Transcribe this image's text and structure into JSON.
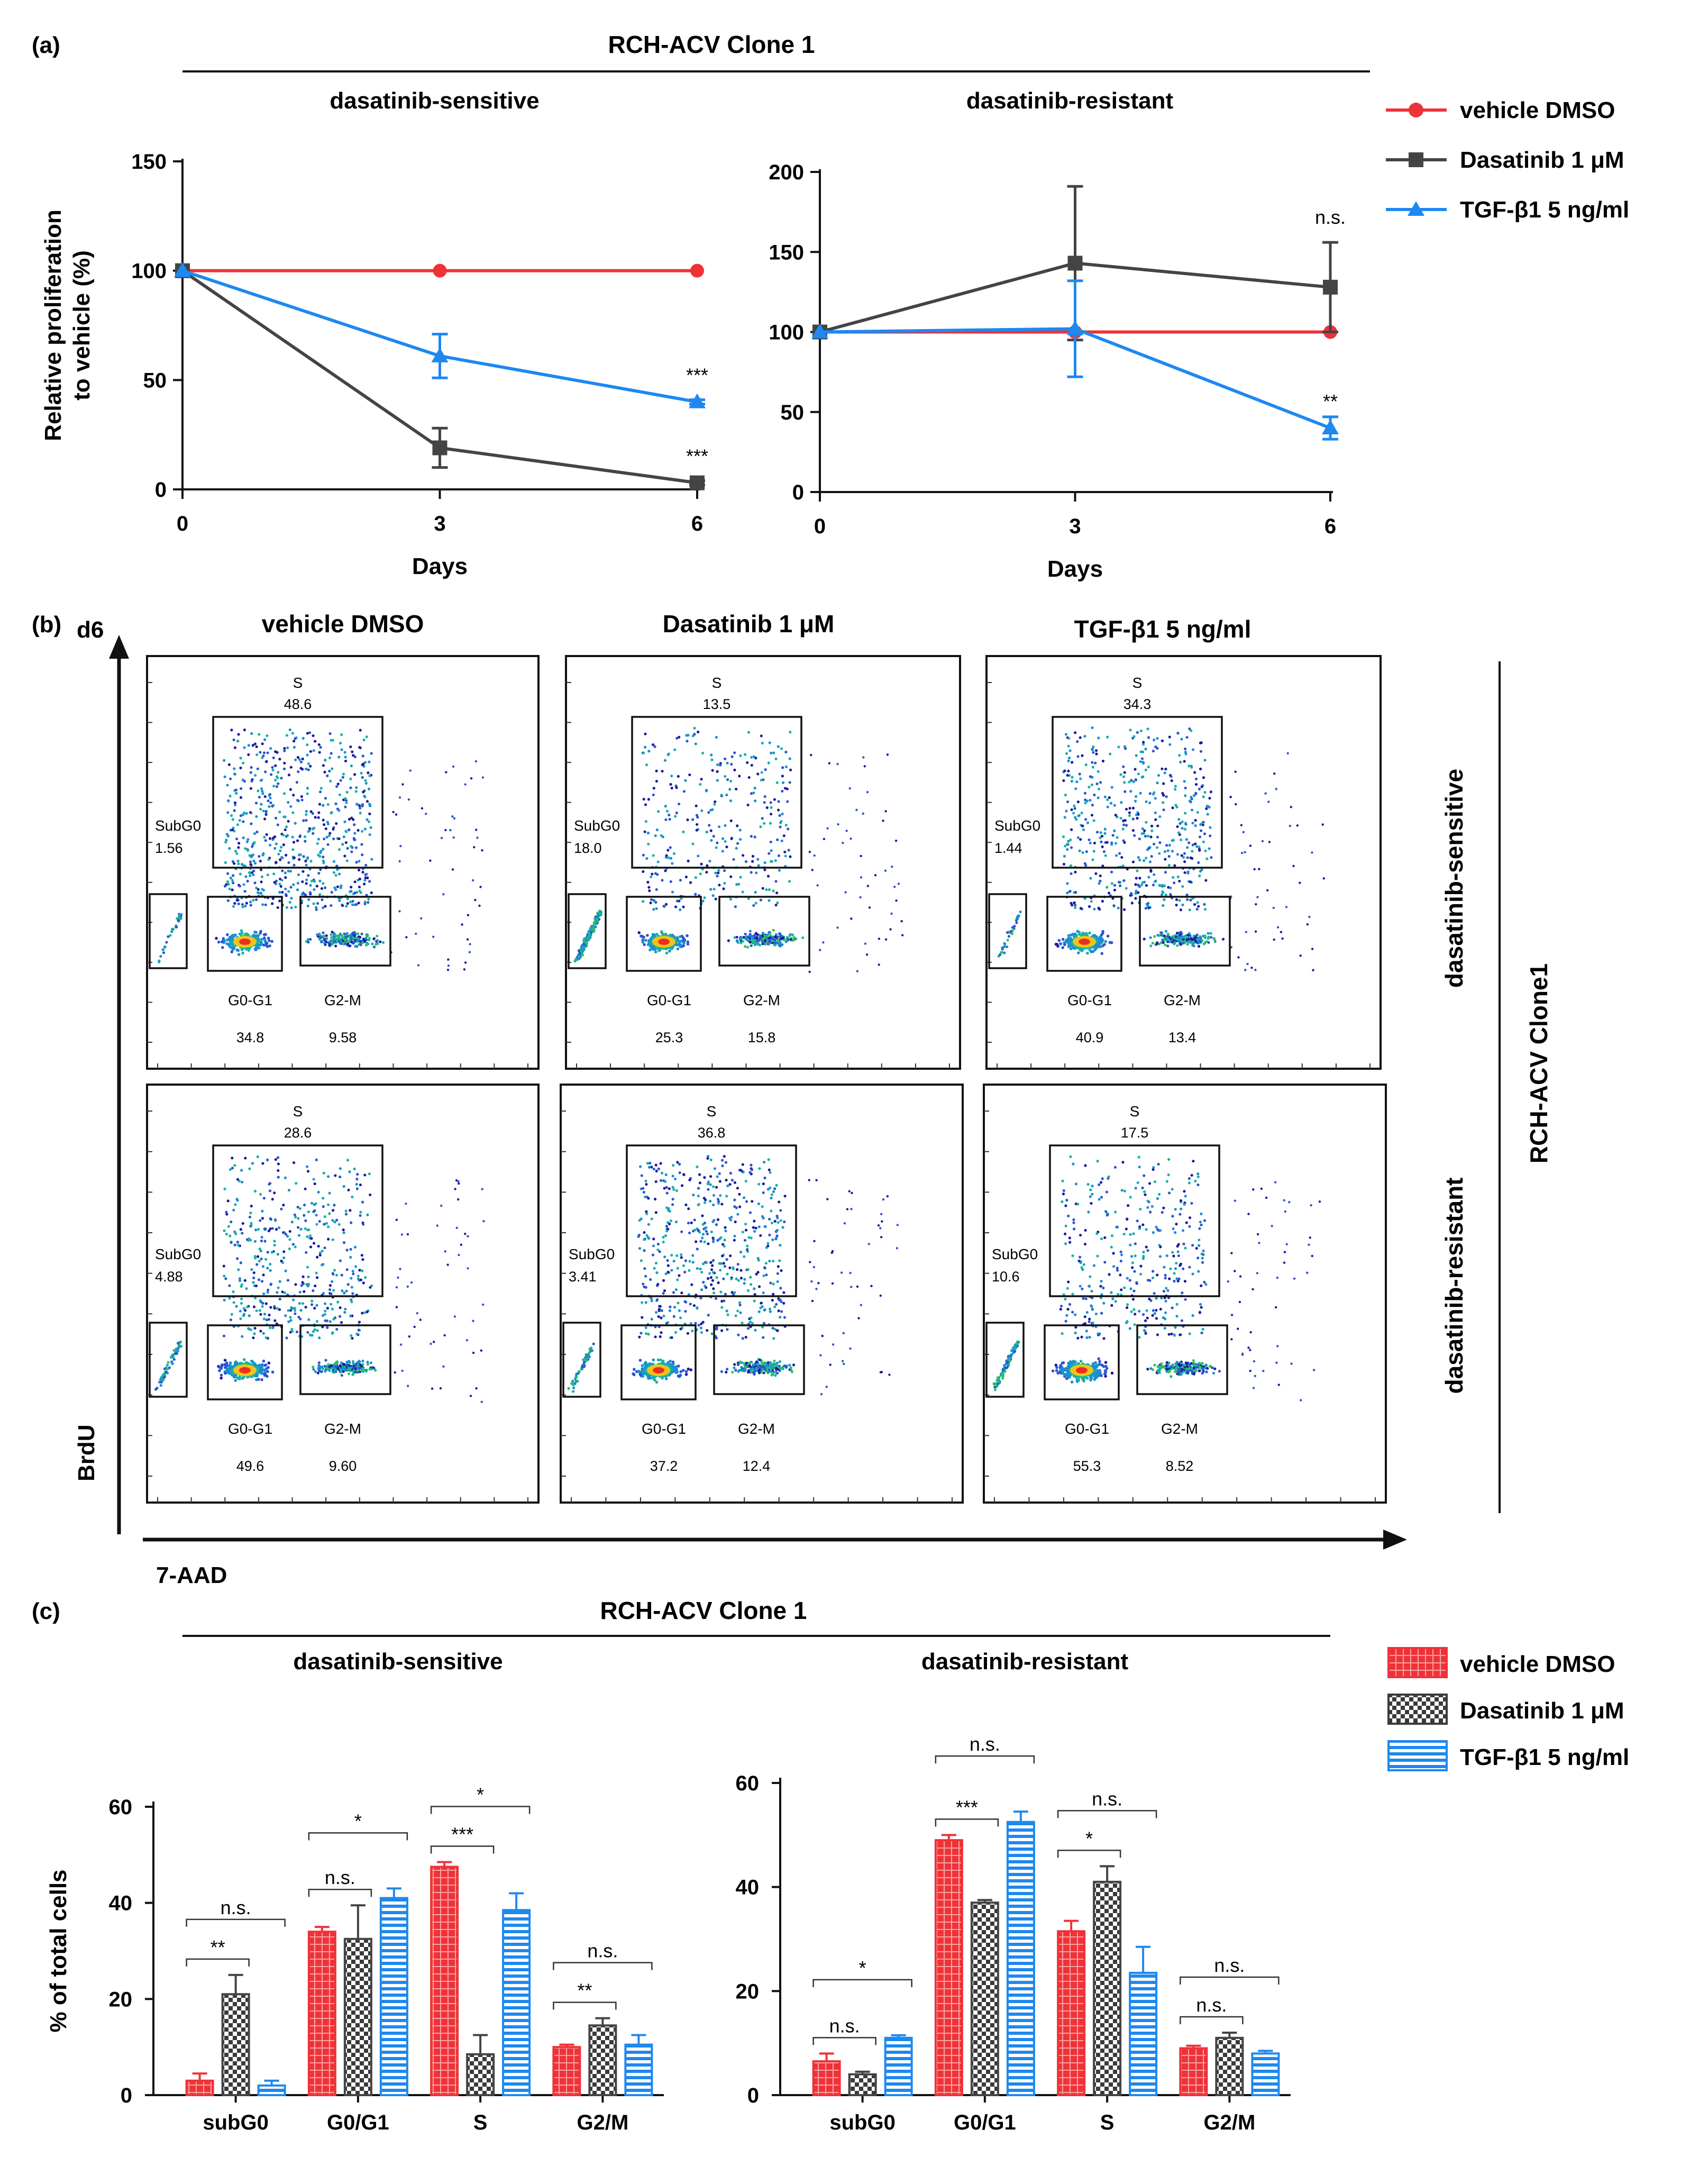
{
  "colors": {
    "vehicle": "#ee3338",
    "dasatinib": "#444444",
    "tgf": "#1e88f0"
  },
  "panel_a": {
    "label": "(a)",
    "group_title": "RCH-ACV Clone 1",
    "legend": [
      "vehicle DMSO",
      "Dasatinib 1 μM",
      "TGF-β1 5 ng/ml"
    ]
  },
  "panel_b": {
    "label": "(b)",
    "day_label": "d6",
    "y_axis": "BrdU",
    "x_axis": "7-AAD",
    "columns": [
      "vehicle DMSO",
      "Dasatinib 1 μM",
      "TGF-β1 5 ng/ml"
    ],
    "rows": [
      "dasatinib-sensitive",
      "dasatinib-resistant"
    ],
    "side_label": "RCH-ACV Clone1",
    "gate_names": {
      "s": "S",
      "subg0": "SubG0",
      "g0g1": "G0-G1",
      "g2m": "G2-M"
    },
    "plots": [
      {
        "s": "48.6",
        "subg0": "1.56",
        "g0g1": "34.8",
        "g2m": "9.58"
      },
      {
        "s": "13.5",
        "subg0": "18.0",
        "g0g1": "25.3",
        "g2m": "15.8"
      },
      {
        "s": "34.3",
        "subg0": "1.44",
        "g0g1": "40.9",
        "g2m": "13.4"
      },
      {
        "s": "28.6",
        "subg0": "4.88",
        "g0g1": "49.6",
        "g2m": "9.60"
      },
      {
        "s": "36.8",
        "subg0": "3.41",
        "g0g1": "37.2",
        "g2m": "12.4"
      },
      {
        "s": "17.5",
        "subg0": "10.6",
        "g0g1": "55.3",
        "g2m": "8.52"
      }
    ]
  },
  "panel_c": {
    "label": "(c)",
    "group_title": "RCH-ACV Clone 1",
    "legend": [
      "vehicle DMSO",
      "Dasatinib 1 μM",
      "TGF-β1 5 ng/ml"
    ]
  },
  "chart_data": [
    {
      "id": "a-sensitive",
      "type": "line",
      "title": "dasatinib-sensitive",
      "xlabel": "Days",
      "ylabel": "Relative proliferation to vehicle (%)",
      "x": [
        0,
        3,
        6
      ],
      "xlim": [
        0,
        6
      ],
      "ylim": [
        0,
        150
      ],
      "yticks": [
        0,
        50,
        100,
        150
      ],
      "series": [
        {
          "name": "vehicle DMSO",
          "values": [
            100,
            100,
            100
          ],
          "errors": [
            0,
            0,
            0
          ]
        },
        {
          "name": "Dasatinib 1 μM",
          "values": [
            100,
            19,
            3
          ],
          "errors": [
            0,
            9,
            1
          ]
        },
        {
          "name": "TGF-β1 5 ng/ml",
          "values": [
            100,
            61,
            40
          ],
          "errors": [
            0,
            10,
            1
          ]
        }
      ],
      "annotations": [
        {
          "x": 6,
          "y": 40,
          "text": "***"
        },
        {
          "x": 6,
          "y": 3,
          "text": "***"
        }
      ]
    },
    {
      "id": "a-resistant",
      "type": "line",
      "title": "dasatinib-resistant",
      "xlabel": "Days",
      "ylabel": "",
      "x": [
        0,
        3,
        6
      ],
      "xlim": [
        0,
        6
      ],
      "ylim": [
        0,
        200
      ],
      "yticks": [
        0,
        50,
        100,
        150,
        200
      ],
      "series": [
        {
          "name": "vehicle DMSO",
          "values": [
            100,
            100,
            100
          ],
          "errors": [
            0,
            0,
            0
          ]
        },
        {
          "name": "Dasatinib 1 μM",
          "values": [
            100,
            143,
            128
          ],
          "errors": [
            0,
            48,
            28
          ]
        },
        {
          "name": "TGF-β1 5 ng/ml",
          "values": [
            100,
            102,
            40
          ],
          "errors": [
            0,
            30,
            7
          ]
        }
      ],
      "annotations": [
        {
          "x": 6,
          "y": 128,
          "text": "n.s."
        },
        {
          "x": 6,
          "y": 40,
          "text": "**"
        }
      ]
    },
    {
      "id": "c-sensitive",
      "type": "bar",
      "title": "dasatinib-sensitive",
      "ylabel": "% of total cells",
      "xlabel": "",
      "categories": [
        "subG0",
        "G0/G1",
        "S",
        "G2/M"
      ],
      "ylim": [
        0,
        60
      ],
      "yticks": [
        0,
        20,
        40,
        60
      ],
      "series": [
        {
          "name": "vehicle DMSO",
          "values": [
            3,
            34,
            47.5,
            10
          ],
          "errors": [
            1.5,
            1,
            1,
            0.5
          ]
        },
        {
          "name": "Dasatinib 1 μM",
          "values": [
            21,
            32.5,
            8.5,
            14.5
          ],
          "errors": [
            4,
            7,
            4,
            1.5
          ]
        },
        {
          "name": "TGF-β1 5 ng/ml",
          "values": [
            2,
            41,
            38.5,
            10.5
          ],
          "errors": [
            1,
            2,
            3.5,
            2
          ]
        }
      ],
      "comparisons": [
        {
          "cat": 0,
          "from": 0,
          "to": 1,
          "level": 0,
          "text": "**"
        },
        {
          "cat": 0,
          "from": 0,
          "to": 2,
          "level": 1,
          "text": "n.s."
        },
        {
          "cat": 1,
          "from": 0,
          "to": 1,
          "level": 0,
          "text": "n.s."
        },
        {
          "cat": 1,
          "from": 0,
          "to": 2,
          "level": 1,
          "text": "*"
        },
        {
          "cat": 2,
          "from": 0,
          "to": 1,
          "level": 0,
          "text": "***"
        },
        {
          "cat": 2,
          "from": 0,
          "to": 2,
          "level": 1,
          "text": "*"
        },
        {
          "cat": 3,
          "from": 0,
          "to": 1,
          "level": 0,
          "text": "**"
        },
        {
          "cat": 3,
          "from": 0,
          "to": 2,
          "level": 1,
          "text": "n.s."
        }
      ]
    },
    {
      "id": "c-resistant",
      "type": "bar",
      "title": "dasatinib-resistant",
      "ylabel": "",
      "xlabel": "",
      "categories": [
        "subG0",
        "G0/G1",
        "S",
        "G2/M"
      ],
      "ylim": [
        0,
        60
      ],
      "yticks": [
        0,
        20,
        40,
        60
      ],
      "series": [
        {
          "name": "vehicle DMSO",
          "values": [
            6.5,
            49,
            31.5,
            9
          ],
          "errors": [
            1.5,
            1,
            2,
            0.5
          ]
        },
        {
          "name": "Dasatinib 1 μM",
          "values": [
            4,
            37,
            41,
            11
          ],
          "errors": [
            0.5,
            0.5,
            3,
            1
          ]
        },
        {
          "name": "TGF-β1 5 ng/ml",
          "values": [
            11,
            52.5,
            23.5,
            8
          ],
          "errors": [
            0.5,
            2,
            5,
            0.5
          ]
        }
      ],
      "comparisons": [
        {
          "cat": 0,
          "from": 0,
          "to": 1,
          "level": 0,
          "text": "n.s."
        },
        {
          "cat": 0,
          "from": 0,
          "to": 2,
          "level": 1,
          "text": "*"
        },
        {
          "cat": 1,
          "from": 0,
          "to": 1,
          "level": 0,
          "text": "***"
        },
        {
          "cat": 1,
          "from": 0,
          "to": 2,
          "level": 1,
          "text": "n.s."
        },
        {
          "cat": 2,
          "from": 0,
          "to": 1,
          "level": 0,
          "text": "*"
        },
        {
          "cat": 2,
          "from": 0,
          "to": 2,
          "level": 1,
          "text": "n.s."
        },
        {
          "cat": 3,
          "from": 0,
          "to": 1,
          "level": 0,
          "text": "n.s."
        },
        {
          "cat": 3,
          "from": 0,
          "to": 2,
          "level": 1,
          "text": "n.s."
        }
      ]
    }
  ]
}
